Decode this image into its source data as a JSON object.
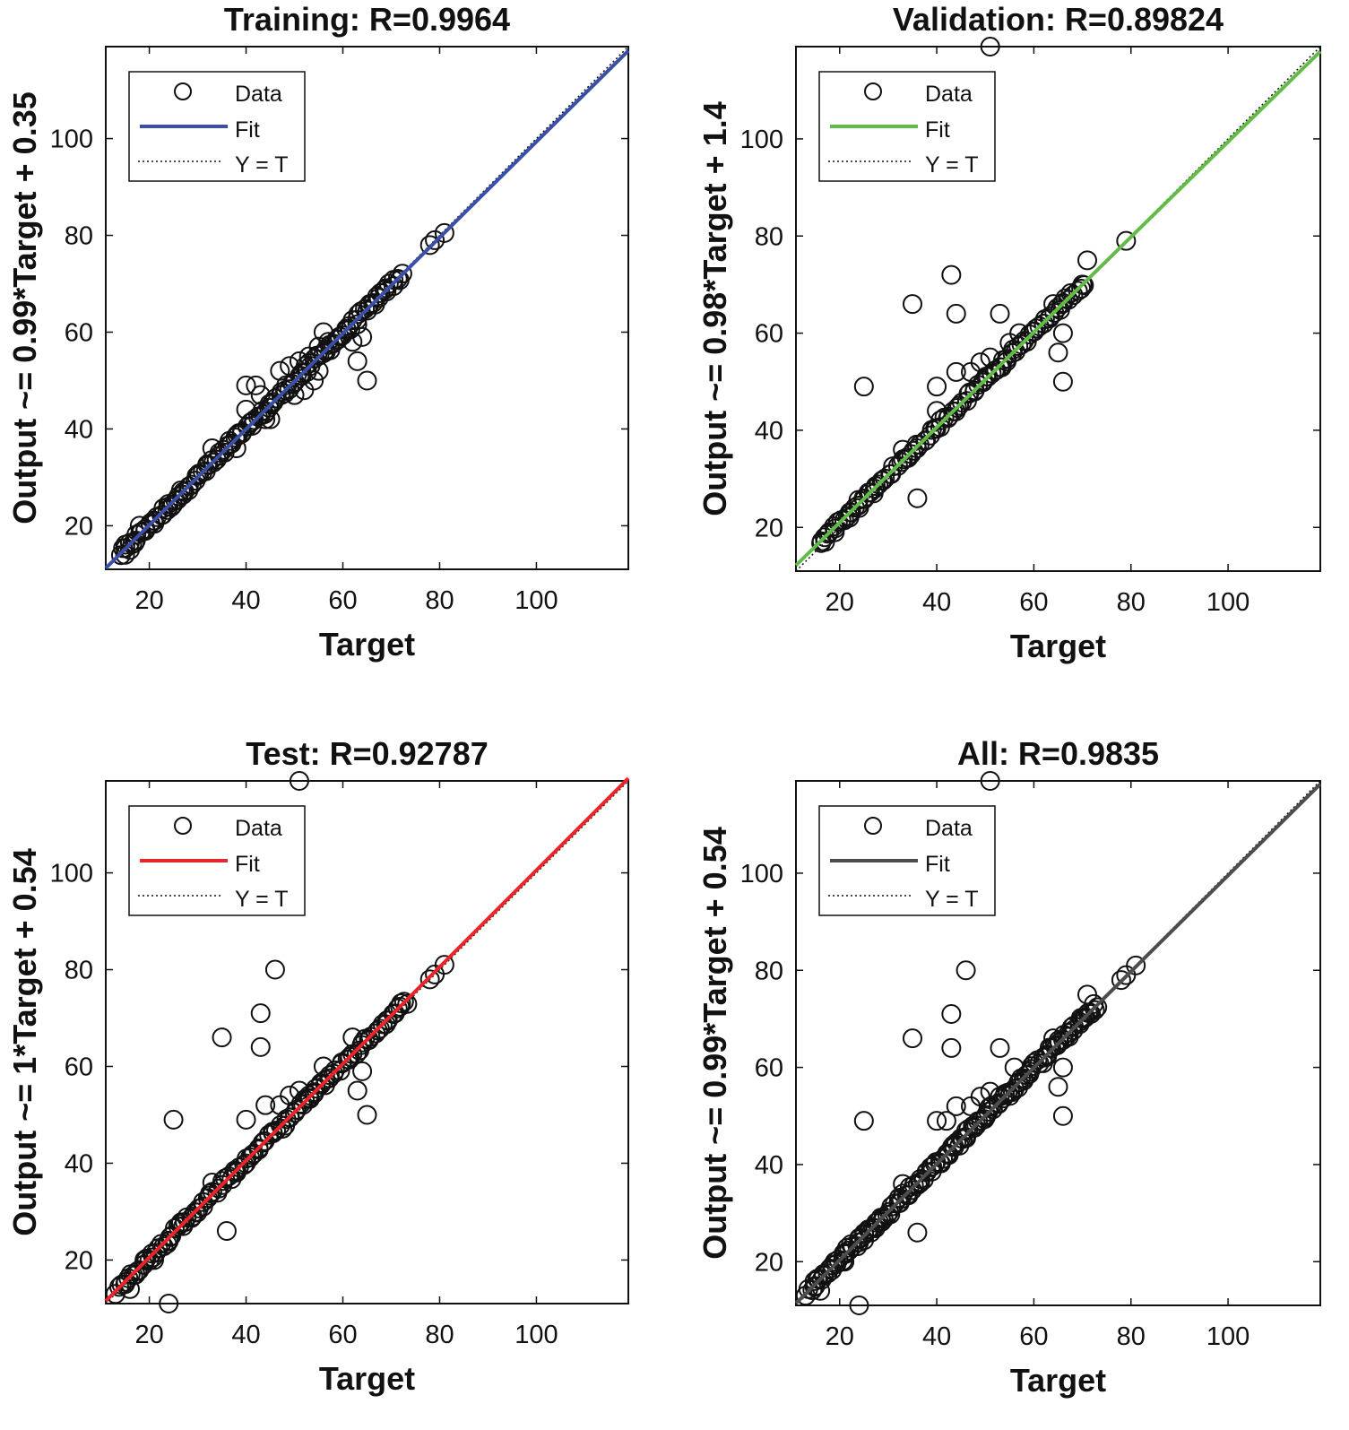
{
  "chart_data": [
    {
      "type": "scatter",
      "title": "Training: R=0.9964",
      "xlabel": "Target",
      "ylabel": "Output ~= 0.99*Target + 0.35",
      "xlim": [
        11,
        119
      ],
      "ylim": [
        11,
        119
      ],
      "xticks": [
        20,
        40,
        60,
        80,
        100
      ],
      "yticks": [
        20,
        40,
        60,
        80,
        100
      ],
      "fit": {
        "slope": 0.99,
        "intercept": 0.35,
        "color": "#3a4fa8"
      },
      "legend": {
        "position": "top-left",
        "entries": [
          "Data",
          "Fit",
          "Y = T"
        ]
      },
      "outliers": [
        [
          78,
          78
        ],
        [
          79,
          79
        ],
        [
          81,
          80.5
        ],
        [
          62,
          58
        ],
        [
          64,
          59
        ],
        [
          63,
          54
        ],
        [
          65,
          50
        ],
        [
          40,
          49
        ],
        [
          42,
          49
        ],
        [
          43,
          47
        ],
        [
          40,
          44
        ],
        [
          38,
          36
        ],
        [
          33,
          36
        ],
        [
          18,
          20
        ],
        [
          15,
          14
        ],
        [
          16,
          15
        ],
        [
          21,
          21
        ],
        [
          24,
          24
        ],
        [
          27,
          27
        ],
        [
          47,
          52
        ],
        [
          49,
          53
        ],
        [
          51,
          54
        ],
        [
          53,
          55
        ],
        [
          55,
          57
        ],
        [
          56,
          60
        ],
        [
          57,
          58
        ],
        [
          50,
          47
        ],
        [
          52,
          48
        ],
        [
          54,
          50
        ],
        [
          55,
          52
        ],
        [
          44,
          42
        ],
        [
          45,
          42
        ]
      ],
      "dense_band": {
        "x_start": 14,
        "x_end": 72,
        "count": 130,
        "spread": 0.9
      }
    },
    {
      "type": "scatter",
      "title": "Validation: R=0.89824",
      "xlabel": "Target",
      "ylabel": "Output ~= 0.98*Target + 1.4",
      "xlim": [
        11,
        119
      ],
      "ylim": [
        11,
        119
      ],
      "xticks": [
        20,
        40,
        60,
        80,
        100
      ],
      "yticks": [
        20,
        40,
        60,
        80,
        100
      ],
      "fit": {
        "slope": 0.98,
        "intercept": 1.4,
        "color": "#62bb46"
      },
      "legend": {
        "position": "top-left",
        "entries": [
          "Data",
          "Fit",
          "Y = T"
        ]
      },
      "outliers": [
        [
          51,
          119
        ],
        [
          79,
          79
        ],
        [
          71,
          75
        ],
        [
          70,
          70
        ],
        [
          43,
          72
        ],
        [
          35,
          66
        ],
        [
          44,
          64
        ],
        [
          53,
          64
        ],
        [
          64,
          66
        ],
        [
          66,
          60
        ],
        [
          65,
          56
        ],
        [
          66,
          50
        ],
        [
          25,
          49
        ],
        [
          40,
          49
        ],
        [
          44,
          52
        ],
        [
          47,
          52
        ],
        [
          49,
          54
        ],
        [
          51,
          55
        ],
        [
          53,
          53
        ],
        [
          55,
          58
        ],
        [
          57,
          60
        ],
        [
          36,
          26
        ],
        [
          33,
          36
        ],
        [
          17,
          17
        ],
        [
          19,
          19
        ],
        [
          22,
          22
        ],
        [
          24,
          24
        ],
        [
          27,
          27
        ],
        [
          40,
          44
        ]
      ],
      "dense_band": {
        "x_start": 16,
        "x_end": 70,
        "count": 100,
        "spread": 0.7
      }
    },
    {
      "type": "scatter",
      "title": "Test: R=0.92787",
      "xlabel": "Target",
      "ylabel": "Output ~= 1*Target + 0.54",
      "xlim": [
        11,
        119
      ],
      "ylim": [
        11,
        119
      ],
      "xticks": [
        20,
        40,
        60,
        80,
        100
      ],
      "yticks": [
        20,
        40,
        60,
        80,
        100
      ],
      "fit": {
        "slope": 1,
        "intercept": 0.54,
        "color": "#e8252b"
      },
      "legend": {
        "position": "top-left",
        "entries": [
          "Data",
          "Fit",
          "Y = T"
        ]
      },
      "outliers": [
        [
          51,
          119
        ],
        [
          24,
          11
        ],
        [
          46,
          80
        ],
        [
          43,
          71
        ],
        [
          35,
          66
        ],
        [
          43,
          64
        ],
        [
          62,
          66
        ],
        [
          64,
          59
        ],
        [
          63,
          55
        ],
        [
          65,
          50
        ],
        [
          25,
          49
        ],
        [
          40,
          49
        ],
        [
          44,
          52
        ],
        [
          47,
          52
        ],
        [
          49,
          54
        ],
        [
          51,
          55
        ],
        [
          53,
          54
        ],
        [
          56,
          60
        ],
        [
          36,
          26
        ],
        [
          33,
          36
        ],
        [
          13,
          13
        ],
        [
          15,
          15
        ],
        [
          16,
          14
        ],
        [
          19,
          20
        ],
        [
          21,
          20
        ],
        [
          24,
          24
        ],
        [
          27,
          27
        ],
        [
          78,
          78
        ],
        [
          79,
          79
        ],
        [
          81,
          81
        ]
      ],
      "dense_band": {
        "x_start": 14,
        "x_end": 73,
        "count": 120,
        "spread": 0.8
      }
    },
    {
      "type": "scatter",
      "title": "All: R=0.9835",
      "xlabel": "Target",
      "ylabel": "Output ~= 0.99*Target + 0.54",
      "xlim": [
        11,
        119
      ],
      "ylim": [
        11,
        119
      ],
      "xticks": [
        20,
        40,
        60,
        80,
        100
      ],
      "yticks": [
        20,
        40,
        60,
        80,
        100
      ],
      "fit": {
        "slope": 0.99,
        "intercept": 0.54,
        "color": "#4d4d4d"
      },
      "legend": {
        "position": "top-left",
        "entries": [
          "Data",
          "Fit",
          "Y = T"
        ]
      },
      "outliers": [
        [
          51,
          119
        ],
        [
          24,
          11
        ],
        [
          46,
          80
        ],
        [
          43,
          71
        ],
        [
          35,
          66
        ],
        [
          43,
          64
        ],
        [
          53,
          64
        ],
        [
          64,
          66
        ],
        [
          66,
          60
        ],
        [
          65,
          56
        ],
        [
          66,
          50
        ],
        [
          25,
          49
        ],
        [
          40,
          49
        ],
        [
          42,
          49
        ],
        [
          44,
          52
        ],
        [
          47,
          52
        ],
        [
          49,
          54
        ],
        [
          51,
          55
        ],
        [
          53,
          54
        ],
        [
          56,
          60
        ],
        [
          36,
          26
        ],
        [
          33,
          36
        ],
        [
          13,
          13
        ],
        [
          15,
          15
        ],
        [
          16,
          14
        ],
        [
          19,
          20
        ],
        [
          21,
          20
        ],
        [
          24,
          24
        ],
        [
          27,
          27
        ],
        [
          78,
          78
        ],
        [
          79,
          79
        ],
        [
          81,
          81
        ],
        [
          71,
          75
        ],
        [
          70,
          70
        ]
      ],
      "dense_band": {
        "x_start": 14,
        "x_end": 73,
        "count": 150,
        "spread": 0.9
      }
    }
  ]
}
